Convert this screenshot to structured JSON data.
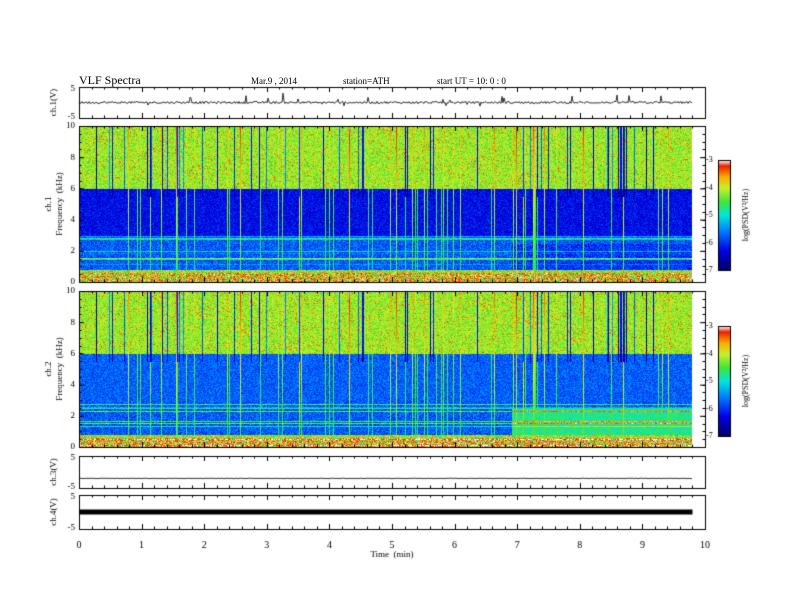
{
  "header": {
    "title": "VLF  Spectra",
    "date": "Mar.9  , 2014",
    "station": "station=ATH",
    "start": "start  UT =    10: 0  : 0"
  },
  "chart_data": {
    "type": "heatmap",
    "title": "VLF  Spectra",
    "x": {
      "label": "Time  (min)",
      "range": [
        0,
        10
      ],
      "ticks": [
        "0",
        "1",
        "2",
        "3",
        "4",
        "5",
        "6",
        "7",
        "8",
        "9",
        "10"
      ],
      "data_end_min": 9.8
    },
    "panels": [
      {
        "label": "ch.1(V)",
        "kind": "waveform",
        "ylim": [
          -5,
          5
        ],
        "ticks": [
          "5",
          "-5"
        ],
        "baseline": 0
      },
      {
        "label": "ch.1\nFrequency  (kHz)",
        "kind": "spectrogram",
        "ylim": [
          0,
          10
        ],
        "ticks": [
          "0",
          "2",
          "4",
          "6",
          "8",
          "10"
        ],
        "colorbar": {
          "label": "log(PSD(V²/Hz)",
          "range": [
            -7,
            -3
          ],
          "ticks": [
            "-3",
            "-4",
            "-5",
            "-6",
            "-7"
          ]
        }
      },
      {
        "label": "ch.2\nFrequency  (kHz)",
        "kind": "spectrogram",
        "ylim": [
          0,
          10
        ],
        "ticks": [
          "0",
          "2",
          "4",
          "6",
          "8",
          "10"
        ],
        "colorbar": {
          "label": "log(PSD(V²/Hz)",
          "range": [
            -7,
            -3
          ],
          "ticks": [
            "-3",
            "-4",
            "-5",
            "-6",
            "-7"
          ]
        }
      },
      {
        "label": "ch.3(V)",
        "kind": "waveform",
        "ylim": [
          -5,
          5
        ],
        "ticks": [
          "5",
          "-5"
        ],
        "baseline": -2
      },
      {
        "label": "ch.4(V)",
        "kind": "waveform",
        "ylim": [
          -5,
          5
        ],
        "ticks": [
          "5",
          "-5"
        ],
        "baseline": 0
      }
    ]
  }
}
